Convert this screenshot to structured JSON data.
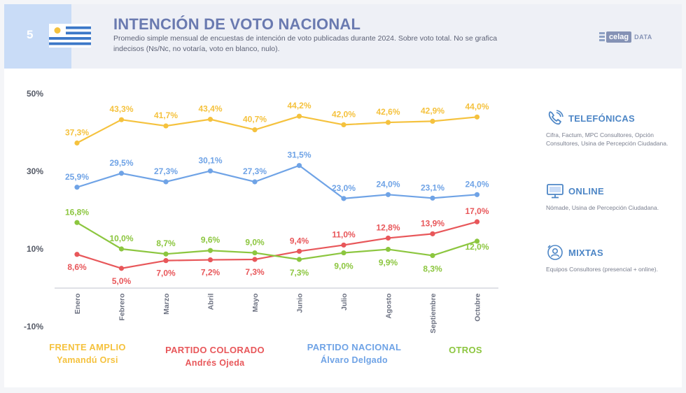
{
  "header": {
    "number": "5",
    "title": "INTENCIÓN DE VOTO NACIONAL",
    "subtitle": "Promedio simple mensual de encuestas de intención de voto publicadas durante 2024. Sobre voto total. No se grafica indecisos (Ns/Nc, no votaría, voto en blanco, nulo).",
    "logo_main": "celag",
    "logo_sub": "DATA",
    "flag_icon": "uruguay-flag-icon"
  },
  "chart_data": {
    "type": "line",
    "categories": [
      "Enero",
      "Febrero",
      "Marzo",
      "Abril",
      "Mayo",
      "Junio",
      "Julio",
      "Agosto",
      "Septiembre",
      "Octubre"
    ],
    "y_ticks": [
      "50%",
      "30%",
      "10%",
      "-10%"
    ],
    "ylim": [
      -10,
      50
    ],
    "grid": false,
    "legend_position": "bottom",
    "series": [
      {
        "name": "FRENTE AMPLIO",
        "candidate": "Yamandú Orsi",
        "color": "#f5c23e",
        "values": [
          37.3,
          43.3,
          41.7,
          43.4,
          40.7,
          44.2,
          42.0,
          42.6,
          42.9,
          44.0
        ],
        "labels": [
          "37,3%",
          "43,3%",
          "41,7%",
          "43,4%",
          "40,7%",
          "44,2%",
          "42,0%",
          "42,6%",
          "42,9%",
          "44,0%"
        ]
      },
      {
        "name": "PARTIDO NACIONAL",
        "candidate": "Álvaro Delgado",
        "color": "#6fa3e6",
        "values": [
          25.9,
          29.5,
          27.3,
          30.1,
          27.3,
          31.5,
          23.0,
          24.0,
          23.1,
          24.0
        ],
        "labels": [
          "25,9%",
          "29,5%",
          "27,3%",
          "30,1%",
          "27,3%",
          "31,5%",
          "23,0%",
          "24,0%",
          "23,1%",
          "24,0%"
        ]
      },
      {
        "name": "PARTIDO COLORADO",
        "candidate": "Andrés Ojeda",
        "color": "#e8575a",
        "values": [
          8.6,
          5.0,
          7.0,
          7.2,
          7.3,
          9.4,
          11.0,
          12.8,
          13.9,
          17.0
        ],
        "labels": [
          "8,6%",
          "5,0%",
          "7,0%",
          "7,2%",
          "7,3%",
          "9,4%",
          "11,0%",
          "12,8%",
          "13,9%",
          "17,0%"
        ]
      },
      {
        "name": "OTROS",
        "candidate": "",
        "color": "#8cc63f",
        "values": [
          16.8,
          10.0,
          8.7,
          9.6,
          9.0,
          7.3,
          9.0,
          9.9,
          8.3,
          12.0
        ],
        "labels": [
          "16,8%",
          "10,0%",
          "8,7%",
          "9,6%",
          "9,0%",
          "7,3%",
          "9,0%",
          "9,9%",
          "8,3%",
          "12,0%"
        ]
      }
    ]
  },
  "sources": [
    {
      "title": "TELEFÓNICAS",
      "icon": "phone-icon",
      "desc": "Cifra, Factum, MPC Consultores, Opción Consultores, Usina de Percepción Ciudadana."
    },
    {
      "title": "ONLINE",
      "icon": "monitor-icon",
      "desc": "Nómade, Usina de Percepción Ciudadana."
    },
    {
      "title": "MIXTAS",
      "icon": "mixed-icon",
      "desc": "Equipos Consultores (presencial + online)."
    }
  ]
}
